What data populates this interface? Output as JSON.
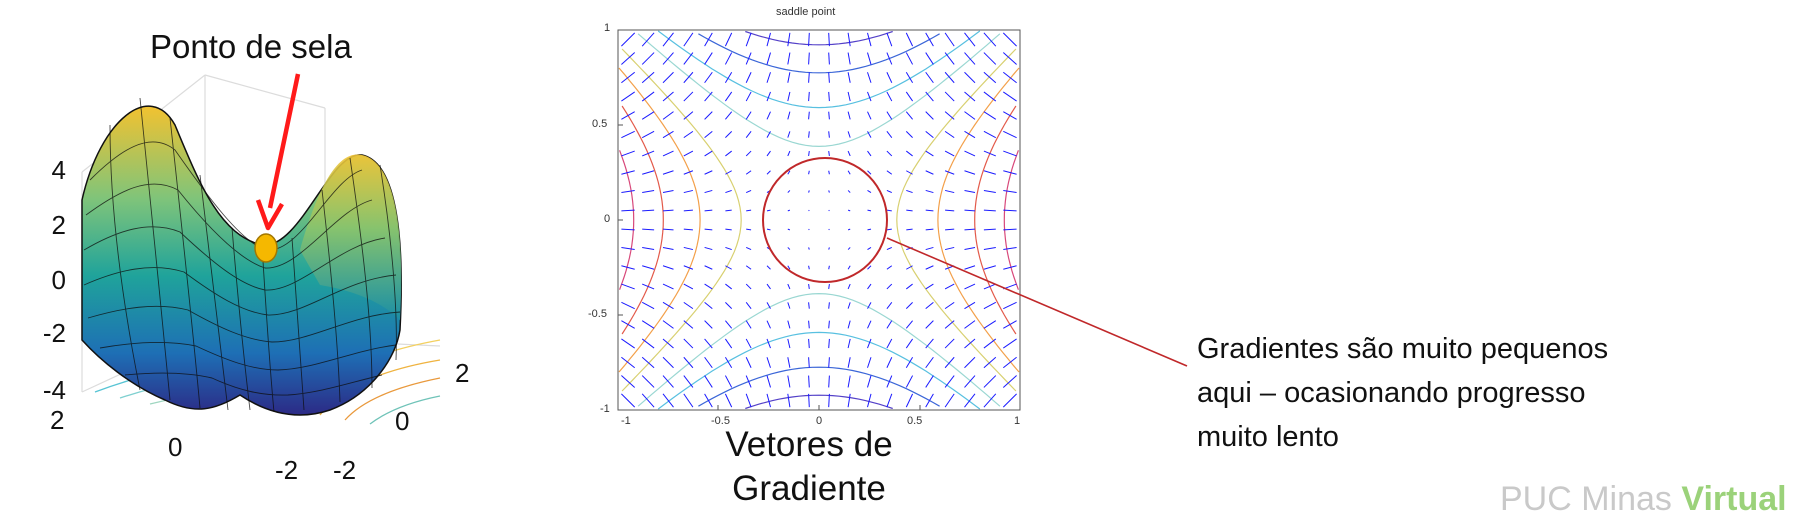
{
  "surface": {
    "title": "Ponto de sela",
    "z_ticks": [
      "4",
      "2",
      "0",
      "-2",
      "-4"
    ],
    "x_ticks": [
      "2",
      "0",
      "-2"
    ],
    "y_ticks": [
      "2",
      "0",
      "-2"
    ],
    "colors": {
      "arrow": "#ff1a1a",
      "point": "#f5b800"
    }
  },
  "field": {
    "title": "saddle point",
    "y_ticks": [
      "1",
      "0.5",
      "0",
      "-0.5",
      "-1"
    ],
    "x_ticks": [
      "-1",
      "-0.5",
      "0",
      "0.5",
      "1"
    ],
    "colors": {
      "arrows": "#1a1aff",
      "circle": "#c0282a"
    }
  },
  "caption": {
    "line1": "Vetores de",
    "line2": "Gradiente"
  },
  "annotation": {
    "line1": "Gradientes são muito pequenos",
    "line2": "aqui – ocasionando progresso",
    "line3": "muito lento"
  },
  "watermark": {
    "part1": "PUC Minas ",
    "part2": "Virtual"
  }
}
